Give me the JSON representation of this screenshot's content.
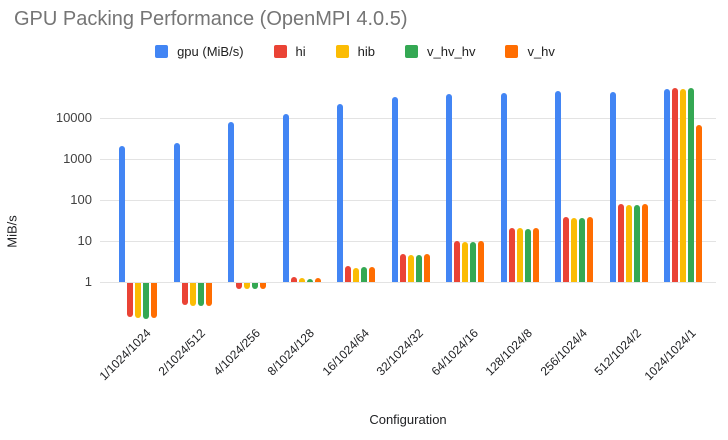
{
  "chart_data": {
    "type": "bar",
    "title": "GPU Packing Performance (OpenMPI 4.0.5)",
    "xlabel": "Configuration",
    "ylabel": "MiB/s",
    "y_scale": "log",
    "y_ticks": [
      1,
      10,
      100,
      1000,
      10000
    ],
    "ylim": [
      0.1,
      100000
    ],
    "legend_position": "top",
    "grid": "horizontal",
    "gridline_color": "#e3e3e3",
    "title_color": "#757575",
    "categories": [
      "1/1024/1024",
      "2/1024/512",
      "4/1024/256",
      "8/1024/128",
      "16/1024/64",
      "32/1024/32",
      "64/1024/16",
      "128/1024/8",
      "256/1024/4",
      "512/1024/2",
      "1024/1024/1"
    ],
    "series": [
      {
        "name": "gpu (MiB/s)",
        "color": "#4285F4",
        "values": [
          2100,
          2500,
          7900,
          12300,
          22000,
          32000,
          38500,
          41000,
          45000,
          42000,
          51000
        ]
      },
      {
        "name": "hi",
        "color": "#EA4335",
        "values": [
          0.15,
          0.29,
          0.72,
          1.3,
          2.4,
          4.7,
          9.8,
          21,
          38,
          80,
          54000
        ]
      },
      {
        "name": "hib",
        "color": "#FBBC04",
        "values": [
          0.14,
          0.28,
          0.73,
          1.25,
          2.2,
          4.6,
          9.7,
          20.5,
          37,
          76,
          51000
        ]
      },
      {
        "name": "v_hv_hv",
        "color": "#34A853",
        "values": [
          0.13,
          0.27,
          0.73,
          1.2,
          2.3,
          4.6,
          9.7,
          20,
          37,
          74,
          54500
        ]
      },
      {
        "name": "v_hv",
        "color": "#FF6D01",
        "values": [
          0.14,
          0.28,
          0.71,
          1.25,
          2.3,
          4.8,
          9.8,
          20.5,
          38,
          78,
          6700
        ]
      }
    ]
  }
}
